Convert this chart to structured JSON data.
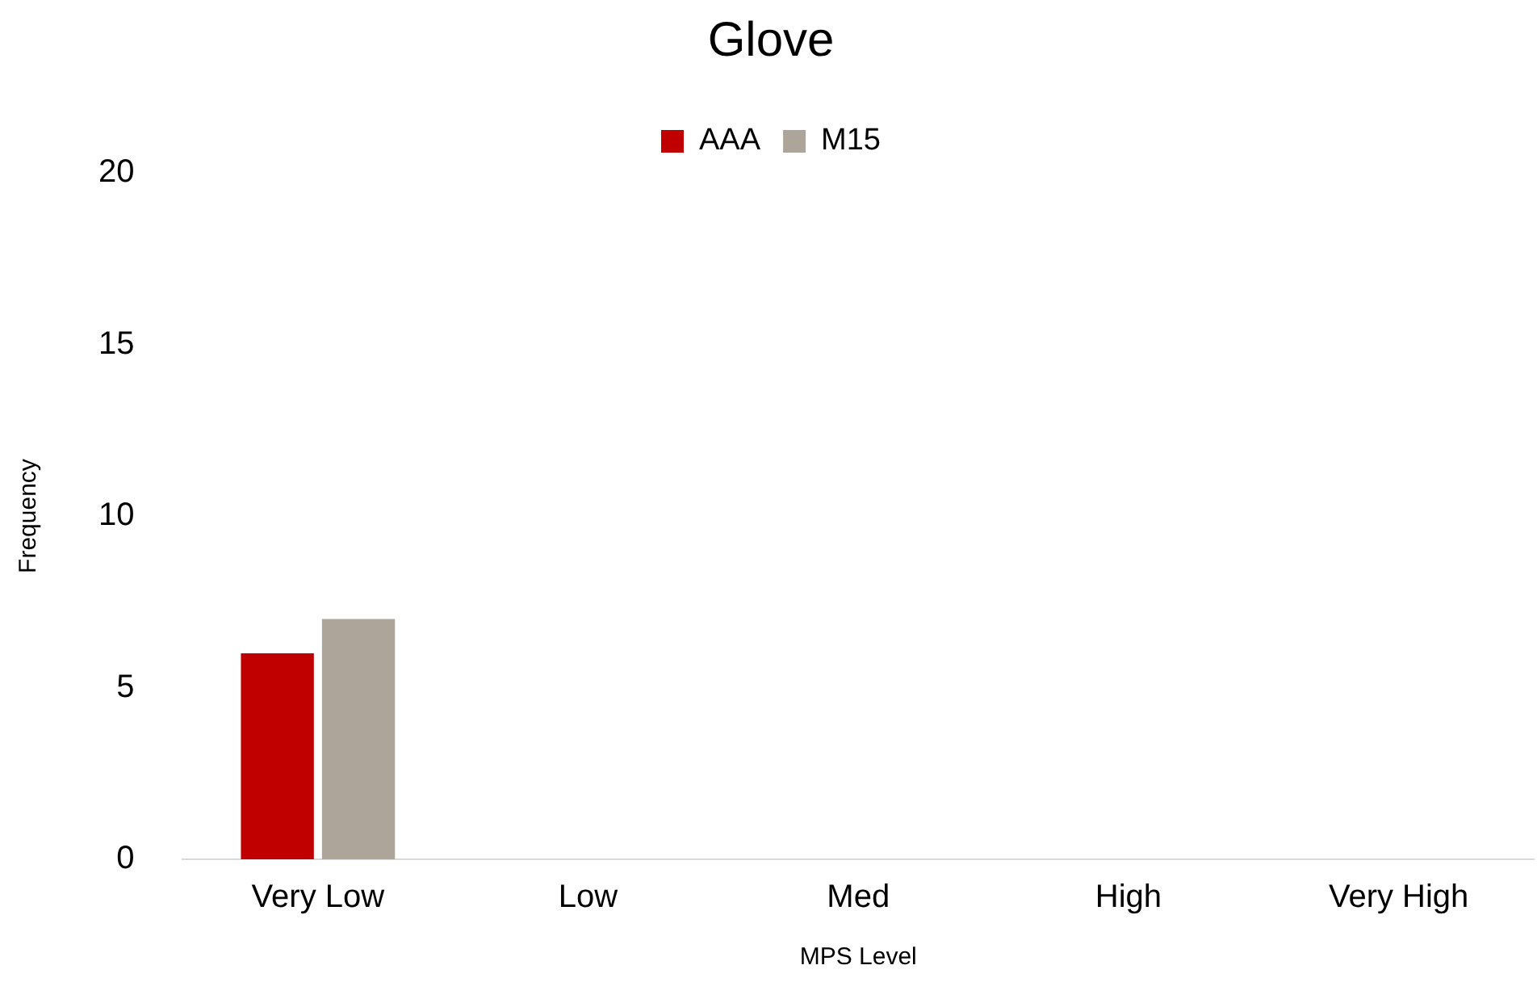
{
  "chart_data": {
    "type": "bar",
    "title": "Glove",
    "xlabel": "MPS Level",
    "ylabel": "Frequency",
    "categories": [
      "Very Low",
      "Low",
      "Med",
      "High",
      "Very High"
    ],
    "series": [
      {
        "name": "AAA",
        "color": "#c00000",
        "values": [
          6,
          0,
          0,
          0,
          0
        ]
      },
      {
        "name": "M15",
        "color": "#aea59a",
        "values": [
          7,
          0,
          0,
          0,
          0
        ]
      }
    ],
    "ylim": [
      0,
      20
    ],
    "yticks": [
      0,
      5,
      10,
      15,
      20
    ],
    "grid": false,
    "legend": "top"
  }
}
